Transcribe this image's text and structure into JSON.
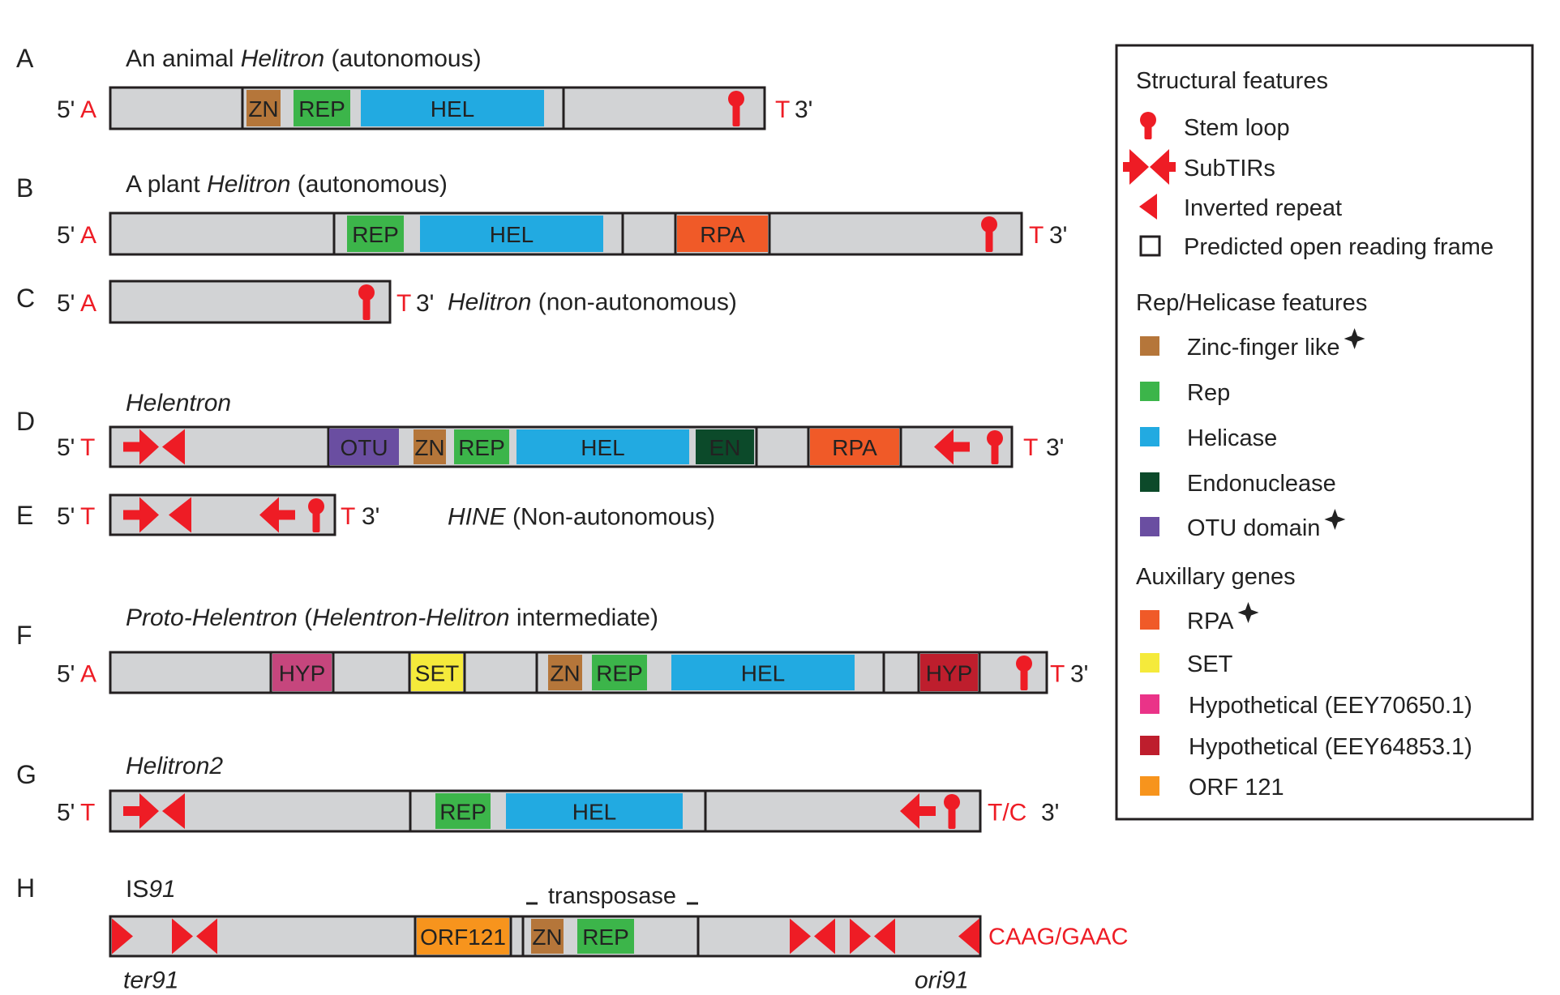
{
  "colors": {
    "bar": "#d2d3d5",
    "outline": "#231f20",
    "red": "#ee1c25",
    "zn": "#b5763a",
    "rep": "#3cb54a",
    "hel": "#22aae1",
    "en": "#0c4a2a",
    "otu": "#6a4ea1",
    "rpa": "#f05a28",
    "set": "#f5ea3b",
    "hyp_pink": "#c6467d",
    "hyp_red": "#be1e2d",
    "hyp_legend_pink": "#ea3388",
    "orf": "#f7941d"
  },
  "panels": [
    {
      "id": "A",
      "letter": "A",
      "title": [
        {
          "t": "An animal "
        },
        {
          "t": "Helitron",
          "i": true
        },
        {
          "t": " (autonomous)"
        }
      ],
      "left": "5'",
      "leftNt": "A",
      "rightNt": "T",
      "rightEnd": "3'",
      "domains": [
        {
          "n": "zn",
          "label": "ZN"
        },
        {
          "n": "rep",
          "label": "REP"
        },
        {
          "n": "hel",
          "label": "HEL"
        }
      ],
      "features": [
        "stem-loop"
      ]
    },
    {
      "id": "B",
      "letter": "B",
      "title": [
        {
          "t": "A plant "
        },
        {
          "t": "Helitron",
          "i": true
        },
        {
          "t": " (autonomous)"
        }
      ],
      "left": "5'",
      "leftNt": "A",
      "rightNt": "T",
      "rightEnd": "3'",
      "domains": [
        {
          "n": "rep",
          "label": "REP"
        },
        {
          "n": "hel",
          "label": "HEL"
        },
        {
          "n": "rpa",
          "label": "RPA"
        }
      ],
      "features": [
        "stem-loop"
      ]
    },
    {
      "id": "C",
      "letter": "C",
      "title": [
        {
          "t": "Helitron",
          "i": true
        },
        {
          "t": " (non-autonomous)"
        }
      ],
      "left": "5'",
      "leftNt": "A",
      "rightNt": "T",
      "rightEnd": "3'",
      "domains": [],
      "features": [
        "stem-loop"
      ]
    },
    {
      "id": "D",
      "letter": "D",
      "title": [
        {
          "t": "Helentron",
          "i": true
        }
      ],
      "left": "5'",
      "leftNt": "T",
      "rightNt": "T",
      "rightEnd": "3'",
      "domains": [
        {
          "n": "otu",
          "label": "OTU"
        },
        {
          "n": "zn",
          "label": "ZN"
        },
        {
          "n": "rep",
          "label": "REP"
        },
        {
          "n": "hel",
          "label": "HEL"
        },
        {
          "n": "en",
          "label": "EN"
        },
        {
          "n": "rpa",
          "label": "RPA"
        }
      ],
      "features": [
        "subtirs",
        "inverted-repeat",
        "stem-loop"
      ]
    },
    {
      "id": "E",
      "letter": "E",
      "title": [
        {
          "t": "HINE",
          "i": true
        },
        {
          "t": " (Non-autonomous)"
        }
      ],
      "left": "5'",
      "leftNt": "T",
      "rightNt": "T",
      "rightEnd": "3'",
      "domains": [],
      "features": [
        "subtirs",
        "inverted-repeat",
        "stem-loop"
      ]
    },
    {
      "id": "F",
      "letter": "F",
      "title": [
        {
          "t": "Proto-Helentron",
          "i": true
        },
        {
          "t": " ("
        },
        {
          "t": "Helentron-Helitron",
          "i": true
        },
        {
          "t": " intermediate)"
        }
      ],
      "left": "5'",
      "leftNt": "A",
      "rightNt": "T",
      "rightEnd": "3'",
      "domains": [
        {
          "n": "hyp1",
          "label": "HYP"
        },
        {
          "n": "set",
          "label": "SET"
        },
        {
          "n": "zn",
          "label": "ZN"
        },
        {
          "n": "rep",
          "label": "REP"
        },
        {
          "n": "hel",
          "label": "HEL"
        },
        {
          "n": "hyp2",
          "label": "HYP"
        }
      ],
      "features": [
        "stem-loop"
      ]
    },
    {
      "id": "G",
      "letter": "G",
      "title": [
        {
          "t": "Helitron2",
          "i": true
        }
      ],
      "left": "5'",
      "leftNt": "T",
      "rightNt": "T/C",
      "rightEnd": "3'",
      "domains": [
        {
          "n": "rep",
          "label": "REP"
        },
        {
          "n": "hel",
          "label": "HEL"
        }
      ],
      "features": [
        "subtirs",
        "inverted-repeat",
        "stem-loop"
      ]
    },
    {
      "id": "H",
      "letter": "H",
      "title": [
        {
          "t": "IS"
        },
        {
          "t": "91",
          "i": true
        }
      ],
      "transposase": "transposase",
      "rightText": "CAAG/GAAC",
      "terLabel": "ter91",
      "oriLabel": "ori91",
      "domains": [
        {
          "n": "orf",
          "label": "ORF121"
        },
        {
          "n": "zn",
          "label": "ZN"
        },
        {
          "n": "rep",
          "label": "REP"
        }
      ],
      "features": [
        "inverted-repeat"
      ]
    }
  ],
  "legend": {
    "sections": [
      {
        "title": "Structural features",
        "items": [
          {
            "sym": "stemloop",
            "label": "Stem loop"
          },
          {
            "sym": "subtirs",
            "label": "SubTIRs"
          },
          {
            "sym": "invrep",
            "label": "Inverted repeat"
          },
          {
            "sym": "orfbox",
            "label": "Predicted open reading frame"
          }
        ]
      },
      {
        "title": "Rep/Helicase features",
        "items": [
          {
            "sym": "swatch",
            "color": "zn",
            "label": "Zinc-finger like",
            "star": true
          },
          {
            "sym": "swatch",
            "color": "rep",
            "label": "Rep"
          },
          {
            "sym": "swatch",
            "color": "hel",
            "label": "Helicase"
          },
          {
            "sym": "swatch",
            "color": "en",
            "label": "Endonuclease"
          },
          {
            "sym": "swatch",
            "color": "otu",
            "label": "OTU domain",
            "star": true
          }
        ]
      },
      {
        "title": "Auxillary genes",
        "items": [
          {
            "sym": "swatch",
            "color": "rpa",
            "label": "RPA",
            "star": true
          },
          {
            "sym": "swatch",
            "color": "set",
            "label": "SET"
          },
          {
            "sym": "swatch",
            "color": "hyp_legend_pink",
            "label": "Hypothetical (EEY70650.1)"
          },
          {
            "sym": "swatch",
            "color": "hyp_red",
            "label": "Hypothetical (EEY64853.1)"
          },
          {
            "sym": "swatch",
            "color": "orf",
            "label": "ORF 121"
          }
        ]
      }
    ]
  }
}
